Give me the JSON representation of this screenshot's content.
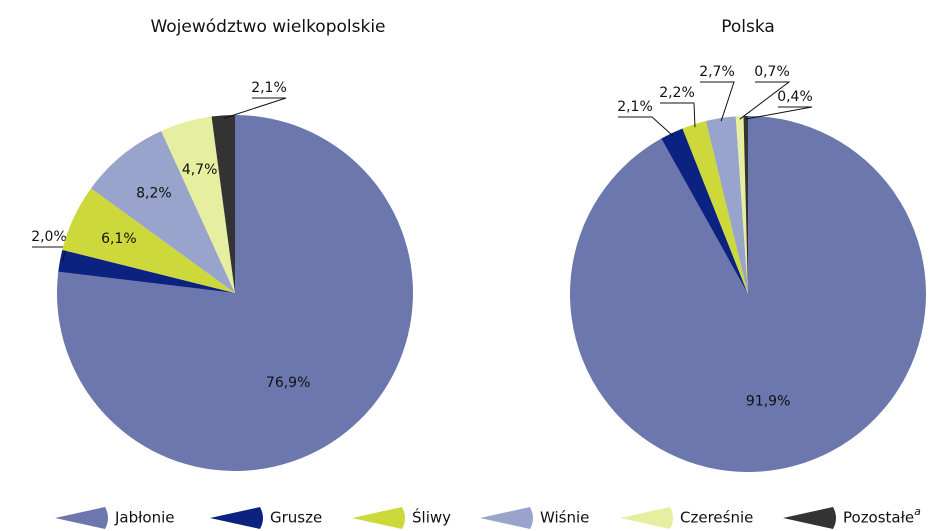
{
  "chart_data": [
    {
      "type": "pie",
      "title": "Województwo wielkopolskie",
      "values": [
        76.9,
        2.0,
        6.1,
        8.2,
        4.7,
        2.1
      ],
      "value_labels": [
        "76,9%",
        "2,0%",
        "6,1%",
        "8,2%",
        "4,7%",
        "2,1%"
      ]
    },
    {
      "type": "pie",
      "title": "Polska",
      "values": [
        91.9,
        2.1,
        2.2,
        2.7,
        0.7,
        0.4
      ],
      "value_labels": [
        "91,9%",
        "2,1%",
        "2,2%",
        "2,7%",
        "0,7%",
        "0,4%"
      ]
    }
  ],
  "legend": {
    "labels": [
      "Jabłonie",
      "Grusze",
      "Śliwy",
      "Wiśnie",
      "Czereśnie",
      "Pozostałe"
    ],
    "footnote_marker": "a",
    "colors": [
      "#6b77ad",
      "#0c2280",
      "#cdd93a",
      "#98a4cc",
      "#e6eea0",
      "#333333"
    ]
  }
}
